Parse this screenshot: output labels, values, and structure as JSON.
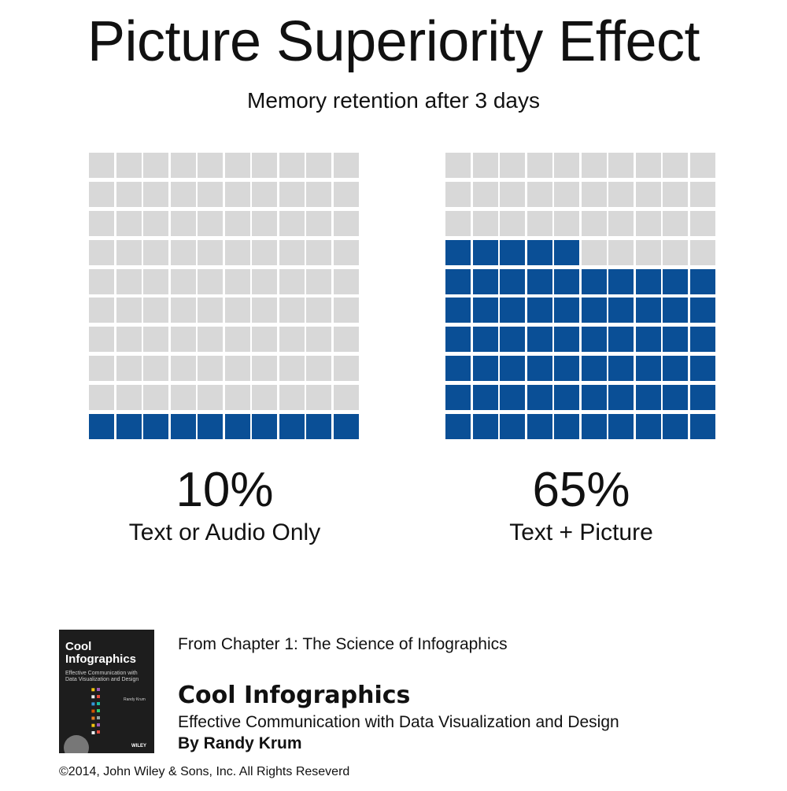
{
  "title": "Picture Superiority Effect",
  "subtitle": "Memory retention after 3 days",
  "colors": {
    "filled": "#0a4f96",
    "empty": "#d8d8d8"
  },
  "chart_data": {
    "type": "waffle",
    "title": "Picture Superiority Effect",
    "subtitle": "Memory retention after 3 days",
    "grid": {
      "rows": 10,
      "cols": 10
    },
    "series": [
      {
        "name": "Text or Audio Only",
        "value": 10,
        "label": "10%"
      },
      {
        "name": "Text + Picture",
        "value": 65,
        "label": "65%"
      }
    ]
  },
  "footer": {
    "chapter": "From Chapter 1: The Science of Infographics",
    "book_title": "Cool Infographics",
    "book_subtitle": "Effective Communication with Data Visualization and Design",
    "author": "By Randy Krum",
    "copyright": "©2014, John Wiley & Sons, Inc. All Rights Reseverd",
    "cover": {
      "title_line1": "Cool",
      "title_line2": "Infographics",
      "subtitle_line1": "Effective Communication with",
      "subtitle_line2": "Data Visualization and Design",
      "author": "Randy Krum",
      "publisher": "WILEY"
    }
  }
}
